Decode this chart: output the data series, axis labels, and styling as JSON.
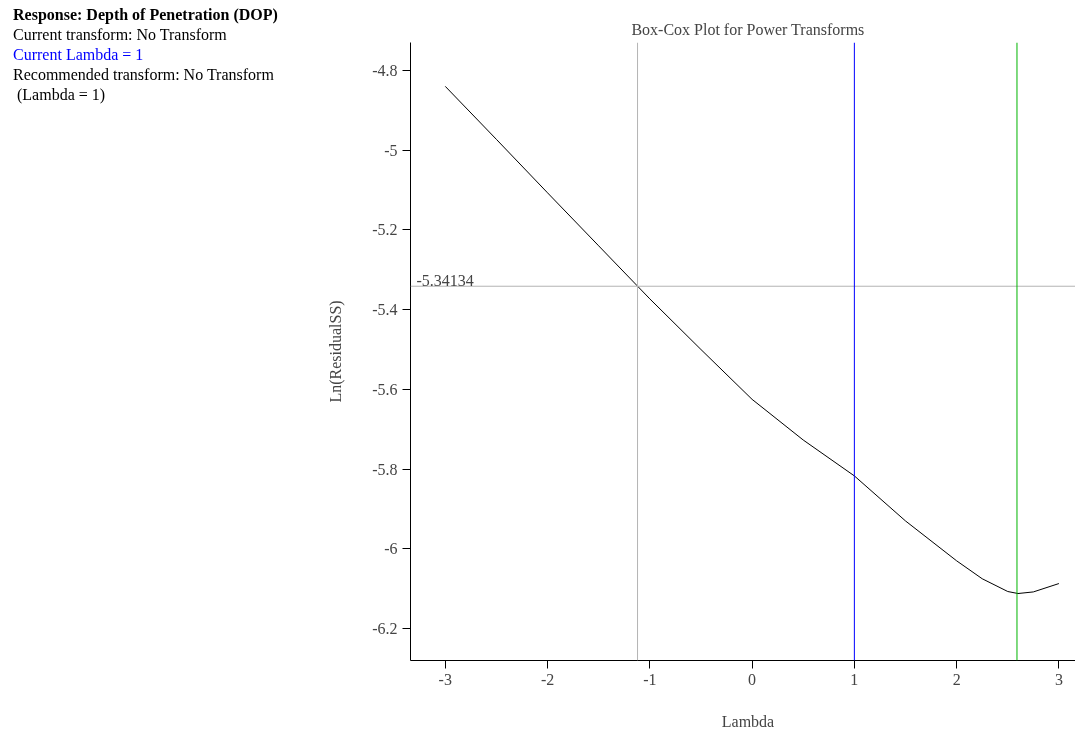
{
  "chart_data": {
    "type": "line",
    "title": "Box-Cox Plot for Power Transforms",
    "xlabel": "Lambda",
    "ylabel": "Ln(ResidualSS)",
    "annotations": [
      "Response: Depth of Penetration (DOP)",
      "Current transform: No Transform",
      "Current Lambda = 1",
      "Recommended transform: No Transform",
      " (Lambda = 1)"
    ],
    "series": [
      {
        "color": "#000000",
        "x": [
          -3,
          -2.5,
          -2,
          -1.5,
          -1,
          -0.5,
          0,
          0.5,
          1,
          1.5,
          2,
          2.25,
          2.5,
          2.6,
          2.75,
          3
        ],
        "values": [
          -4.84,
          -4.973,
          -5.107,
          -5.24,
          -5.373,
          -5.5,
          -5.625,
          -5.727,
          -5.817,
          -5.93,
          -6.03,
          -6.075,
          -6.107,
          -6.112,
          -6.108,
          -6.087
        ]
      }
    ],
    "ref_lines": [
      {
        "axis": "y",
        "value": -5.34134,
        "label": "-5.34134",
        "color": "#b4b4b4"
      },
      {
        "axis": "x",
        "value": -1.12,
        "color": "#b4b4b4"
      },
      {
        "axis": "x",
        "value": 1,
        "color": "#0000ff"
      },
      {
        "axis": "x",
        "value": 2.59,
        "color": "#00b400"
      }
    ],
    "xlim": [
      -3.34,
      3.26
    ],
    "ylim": [
      -6.28,
      -4.73
    ],
    "xticks": [
      -3,
      -2,
      -1,
      0,
      1,
      2,
      3
    ],
    "yticks": [
      -4.8,
      -5,
      -5.2,
      -5.4,
      -5.6,
      -5.8,
      -6,
      -6.2
    ],
    "grid": false,
    "marker": "none",
    "line_style": "solid"
  }
}
